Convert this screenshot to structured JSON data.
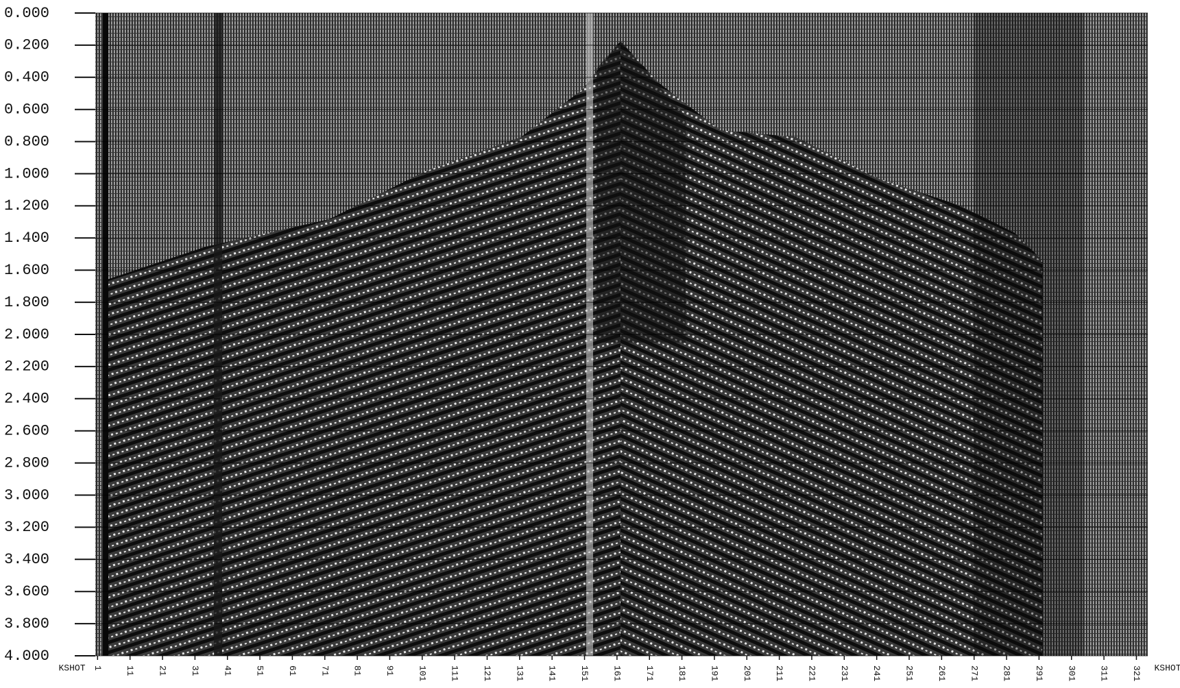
{
  "chart_data": {
    "type": "seismic",
    "xlabel": "KSHOT",
    "xlim": [
      0.3,
      324.5
    ],
    "xticks": [
      1,
      11,
      21,
      31,
      41,
      51,
      61,
      71,
      81,
      91,
      101,
      111,
      121,
      131,
      141,
      151,
      161,
      171,
      181,
      191,
      201,
      211,
      221,
      231,
      241,
      251,
      261,
      271,
      281,
      291,
      301,
      311,
      321
    ],
    "ylim": [
      0,
      4
    ],
    "yinverted": true,
    "yticks": [
      {
        "value": 0,
        "label": "0.000"
      },
      {
        "value": 0.2,
        "label": "0.200"
      },
      {
        "value": 0.4,
        "label": "0.400"
      },
      {
        "value": 0.6,
        "label": "0.600"
      },
      {
        "value": 0.8,
        "label": "0.800"
      },
      {
        "value": 1,
        "label": "1.000"
      },
      {
        "value": 1.2,
        "label": "1.200"
      },
      {
        "value": 1.4,
        "label": "1.400"
      },
      {
        "value": 1.6,
        "label": "1.600"
      },
      {
        "value": 1.8,
        "label": "1.800"
      },
      {
        "value": 2,
        "label": "2.000"
      },
      {
        "value": 2.2,
        "label": "2.200"
      },
      {
        "value": 2.4,
        "label": "2.400"
      },
      {
        "value": 2.6,
        "label": "2.600"
      },
      {
        "value": 2.8,
        "label": "2.800"
      },
      {
        "value": 3,
        "label": "3.000"
      },
      {
        "value": 3.2,
        "label": "3.200"
      },
      {
        "value": 3.4,
        "label": "3.400"
      },
      {
        "value": 3.6,
        "label": "3.600"
      },
      {
        "value": 3.8,
        "label": "3.800"
      },
      {
        "value": 4,
        "label": "4.000"
      }
    ]
  }
}
